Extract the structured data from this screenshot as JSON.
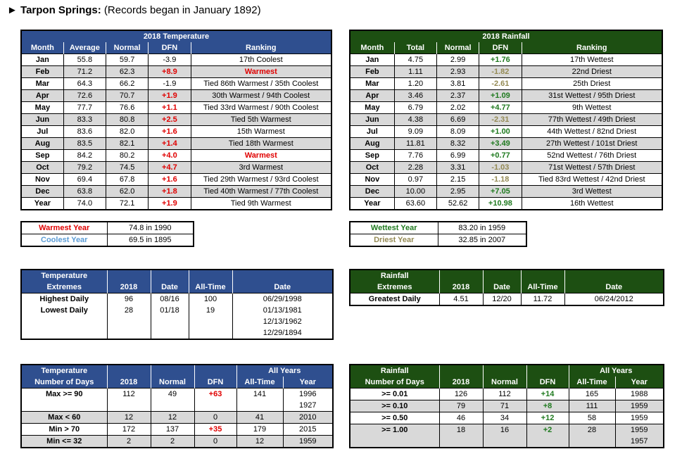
{
  "title": {
    "bold": "Tarpon Springs:",
    "rest": " (Records began in January 1892)",
    "marker": "►"
  },
  "temp": {
    "header": "2018 Temperature",
    "cols": [
      "Month",
      "Average",
      "Normal",
      "DFN",
      "Ranking"
    ],
    "rows": [
      [
        "Jan",
        "55.8",
        "59.7",
        "-3.9",
        "17th Coolest"
      ],
      [
        "Feb",
        "71.2",
        "62.3",
        "+8.9",
        "Warmest"
      ],
      [
        "Mar",
        "64.3",
        "66.2",
        "-1.9",
        "Tied 86th Warmest / 35th Coolest"
      ],
      [
        "Apr",
        "72.6",
        "70.7",
        "+1.9",
        "30th Warmest / 94th Coolest"
      ],
      [
        "May",
        "77.7",
        "76.6",
        "+1.1",
        "Tied 33rd Warmest / 90th Coolest"
      ],
      [
        "Jun",
        "83.3",
        "80.8",
        "+2.5",
        "Tied 5th Warmest"
      ],
      [
        "Jul",
        "83.6",
        "82.0",
        "+1.6",
        "15th Warmest"
      ],
      [
        "Aug",
        "83.5",
        "82.1",
        "+1.4",
        "Tied 18th Warmest"
      ],
      [
        "Sep",
        "84.2",
        "80.2",
        "+4.0",
        "Warmest"
      ],
      [
        "Oct",
        "79.2",
        "74.5",
        "+4.7",
        "3rd Warmest"
      ],
      [
        "Nov",
        "69.4",
        "67.8",
        "+1.6",
        "Tied 29th Warmest / 93rd Coolest"
      ],
      [
        "Dec",
        "63.8",
        "62.0",
        "+1.8",
        "Tied 40th Warmest / 77th Coolest"
      ],
      [
        "Year",
        "74.0",
        "72.1",
        "+1.9",
        "Tied 9th Warmest"
      ]
    ]
  },
  "rain": {
    "header": "2018 Rainfall",
    "cols": [
      "Month",
      "Total",
      "Normal",
      "DFN",
      "Ranking"
    ],
    "rows": [
      [
        "Jan",
        "4.75",
        "2.99",
        "+1.76",
        "17th Wettest"
      ],
      [
        "Feb",
        "1.11",
        "2.93",
        "-1.82",
        "22nd Driest"
      ],
      [
        "Mar",
        "1.20",
        "3.81",
        "-2.61",
        "25th Driest"
      ],
      [
        "Apr",
        "3.46",
        "2.37",
        "+1.09",
        "31st Wettest / 95th Driest"
      ],
      [
        "May",
        "6.79",
        "2.02",
        "+4.77",
        "9th Wettest"
      ],
      [
        "Jun",
        "4.38",
        "6.69",
        "-2.31",
        "77th Wettest / 49th Driest"
      ],
      [
        "Jul",
        "9.09",
        "8.09",
        "+1.00",
        "44th Wettest / 82nd Driest"
      ],
      [
        "Aug",
        "11.81",
        "8.32",
        "+3.49",
        "27th Wettest / 101st Driest"
      ],
      [
        "Sep",
        "7.76",
        "6.99",
        "+0.77",
        "52nd Wettest / 76th Driest"
      ],
      [
        "Oct",
        "2.28",
        "3.31",
        "-1.03",
        "71st Wettest / 57th Driest"
      ],
      [
        "Nov",
        "0.97",
        "2.15",
        "-1.18",
        "Tied 83rd Wettest / 42nd Driest"
      ],
      [
        "Dec",
        "10.00",
        "2.95",
        "+7.05",
        "3rd Wettest"
      ],
      [
        "Year",
        "63.60",
        "52.62",
        "+10.98",
        "16th Wettest"
      ]
    ]
  },
  "temp_years": [
    {
      "label": "Warmest Year",
      "value": "74.8 in 1990"
    },
    {
      "label": "Coolest Year",
      "value": "69.5 in 1895"
    }
  ],
  "rain_years": [
    {
      "label": "Wettest Year",
      "value": "83.20 in 1959"
    },
    {
      "label": "Driest Year",
      "value": "32.85 in 2007"
    }
  ],
  "temp_ext": {
    "h1": "Temperature",
    "h2": "Extremes",
    "c2018": "2018",
    "date": "Date",
    "alltime": "All-Time",
    "date2": "Date",
    "rows": [
      [
        "Highest Daily",
        "96",
        "08/16",
        "100",
        "06/29/1998"
      ],
      [
        "Lowest Daily",
        "28",
        "01/18",
        "19",
        "01/13/1981"
      ],
      [
        "",
        "",
        "",
        "",
        "12/13/1962"
      ],
      [
        "",
        "",
        "",
        "",
        "12/29/1894"
      ]
    ]
  },
  "rain_ext": {
    "h1": "Rainfall",
    "h2": "Extremes",
    "c2018": "2018",
    "date": "Date",
    "alltime": "All-Time",
    "date2": "Date",
    "rows": [
      [
        "Greatest Daily",
        "4.51",
        "12/20",
        "11.72",
        "06/24/2012"
      ]
    ]
  },
  "temp_days": {
    "h1": "Temperature",
    "h2": "Number of Days",
    "allyears": "All Years",
    "cols": [
      "2018",
      "Normal",
      "DFN",
      "All-Time",
      "Year"
    ],
    "rows": [
      [
        "Max >= 90",
        "112",
        "49",
        "+63",
        "141",
        "1996"
      ],
      [
        "",
        "",
        "",
        "",
        "",
        "1927"
      ],
      [
        "Max < 60",
        "12",
        "12",
        "0",
        "41",
        "2010"
      ],
      [
        "Min > 70",
        "172",
        "137",
        "+35",
        "179",
        "2015"
      ],
      [
        "Min <= 32",
        "2",
        "2",
        "0",
        "12",
        "1959"
      ]
    ]
  },
  "rain_days": {
    "h1": "Rainfall",
    "h2": "Number of Days",
    "allyears": "All Years",
    "cols": [
      "2018",
      "Normal",
      "DFN",
      "All-Time",
      "Year"
    ],
    "rows": [
      [
        ">= 0.01",
        "126",
        "112",
        "+14",
        "165",
        "1988"
      ],
      [
        ">= 0.10",
        "79",
        "71",
        "+8",
        "111",
        "1959"
      ],
      [
        ">= 0.50",
        "46",
        "34",
        "+12",
        "58",
        "1959"
      ],
      [
        ">= 1.00",
        "18",
        "16",
        "+2",
        "28",
        "1959"
      ],
      [
        "",
        "",
        "",
        "",
        "",
        "1957"
      ]
    ]
  }
}
